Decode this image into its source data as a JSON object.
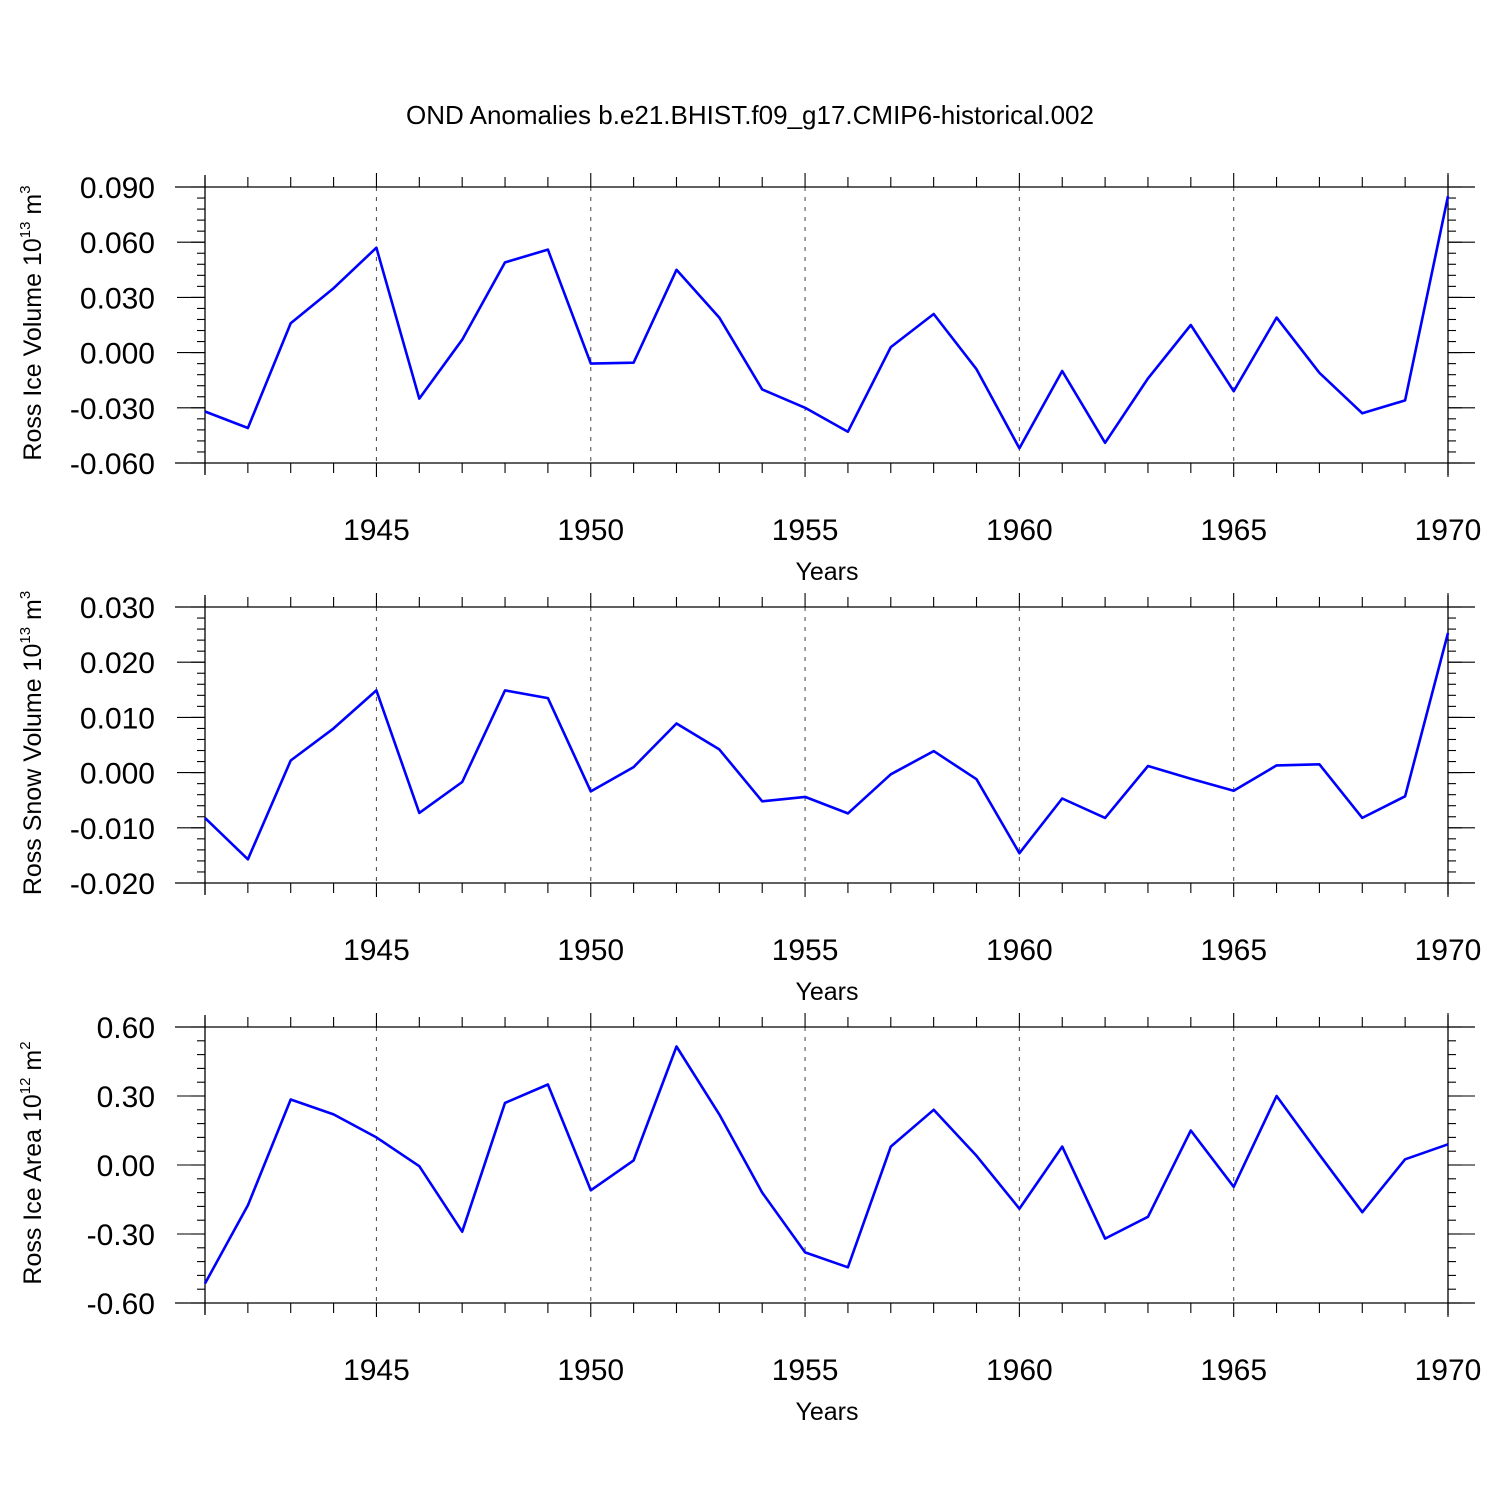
{
  "title": "OND Anomalies b.e21.BHIST.f09_g17.CMIP6-historical.002",
  "chart_data": [
    {
      "type": "line",
      "ylabel": "Ross Ice Volume 10",
      "ylabel_exp": "13",
      "ylabel_unit": " m",
      "ylabel_unit_exp": "3",
      "xlabel": "Years",
      "xlim": [
        1941,
        1970
      ],
      "ylim": [
        -0.06,
        0.09
      ],
      "yticks": [
        -0.06,
        -0.03,
        0.0,
        0.03,
        0.06,
        0.09
      ],
      "ytick_labels": [
        "-0.060",
        "-0.030",
        "0.000",
        "0.030",
        "0.060",
        "0.090"
      ],
      "xticks": [
        1945,
        1950,
        1955,
        1960,
        1965,
        1970
      ],
      "xtick_labels": [
        "1945",
        "1950",
        "1955",
        "1960",
        "1965",
        "1970"
      ],
      "grid": "vertical dashed at labeled years",
      "series": [
        {
          "color": "#0000ff",
          "x": [
            1941,
            1942,
            1943,
            1944,
            1945,
            1946,
            1947,
            1948,
            1949,
            1950,
            1951,
            1952,
            1953,
            1954,
            1955,
            1956,
            1957,
            1958,
            1959,
            1960,
            1961,
            1962,
            1963,
            1964,
            1965,
            1966,
            1967,
            1968,
            1969,
            1970
          ],
          "y": [
            -0.032,
            -0.041,
            0.016,
            0.035,
            0.057,
            -0.025,
            0.007,
            0.049,
            0.056,
            -0.006,
            -0.0055,
            0.045,
            0.019,
            -0.02,
            -0.03,
            -0.043,
            0.003,
            0.021,
            -0.009,
            -0.052,
            -0.01,
            -0.049,
            -0.014,
            0.015,
            -0.021,
            0.019,
            -0.011,
            -0.033,
            -0.026,
            0.085
          ]
        }
      ]
    },
    {
      "type": "line",
      "ylabel": "Ross Snow Volume 10",
      "ylabel_exp": "13",
      "ylabel_unit": " m",
      "ylabel_unit_exp": "3",
      "xlabel": "Years",
      "xlim": [
        1941,
        1970
      ],
      "ylim": [
        -0.02,
        0.03
      ],
      "yticks": [
        -0.02,
        -0.01,
        0.0,
        0.01,
        0.02,
        0.03
      ],
      "ytick_labels": [
        "-0.020",
        "-0.010",
        "0.000",
        "0.010",
        "0.020",
        "0.030"
      ],
      "xticks": [
        1945,
        1950,
        1955,
        1960,
        1965,
        1970
      ],
      "xtick_labels": [
        "1945",
        "1950",
        "1955",
        "1960",
        "1965",
        "1970"
      ],
      "grid": "vertical dashed at labeled years",
      "series": [
        {
          "color": "#0000ff",
          "x": [
            1941,
            1942,
            1943,
            1944,
            1945,
            1946,
            1947,
            1948,
            1949,
            1950,
            1951,
            1952,
            1953,
            1954,
            1955,
            1956,
            1957,
            1958,
            1959,
            1960,
            1961,
            1962,
            1963,
            1964,
            1965,
            1966,
            1967,
            1968,
            1969,
            1970
          ],
          "y": [
            -0.0082,
            -0.0157,
            0.0022,
            0.008,
            0.0149,
            -0.0073,
            -0.0017,
            0.0149,
            0.0135,
            -0.0034,
            0.001,
            0.0089,
            0.0042,
            -0.0052,
            -0.0044,
            -0.0074,
            -0.0003,
            0.0039,
            -0.0012,
            -0.0146,
            -0.0047,
            -0.0082,
            0.0012,
            -0.0011,
            -0.0033,
            0.0013,
            0.0015,
            -0.0082,
            -0.0043,
            0.0253
          ]
        }
      ]
    },
    {
      "type": "line",
      "ylabel": "Ross Ice Area 10",
      "ylabel_exp": "12",
      "ylabel_unit": " m",
      "ylabel_unit_exp": "2",
      "xlabel": "Years",
      "xlim": [
        1941,
        1970
      ],
      "ylim": [
        -0.6,
        0.6
      ],
      "yticks": [
        -0.6,
        -0.3,
        0.0,
        0.3,
        0.6
      ],
      "ytick_labels": [
        "-0.60",
        "-0.30",
        "0.00",
        "0.30",
        "0.60"
      ],
      "xticks": [
        1945,
        1950,
        1955,
        1960,
        1965,
        1970
      ],
      "xtick_labels": [
        "1945",
        "1950",
        "1955",
        "1960",
        "1965",
        "1970"
      ],
      "grid": "vertical dashed at labeled years",
      "series": [
        {
          "color": "#0000ff",
          "x": [
            1941,
            1942,
            1943,
            1944,
            1945,
            1946,
            1947,
            1948,
            1949,
            1950,
            1951,
            1952,
            1953,
            1954,
            1955,
            1956,
            1957,
            1958,
            1959,
            1960,
            1961,
            1962,
            1963,
            1964,
            1965,
            1966,
            1967,
            1968,
            1969,
            1970
          ],
          "y": [
            -0.515,
            -0.175,
            0.285,
            0.22,
            0.12,
            -0.005,
            -0.29,
            0.27,
            0.35,
            -0.11,
            0.02,
            0.515,
            0.22,
            -0.12,
            -0.38,
            -0.445,
            0.08,
            0.24,
            0.04,
            -0.19,
            0.08,
            -0.32,
            -0.225,
            0.15,
            -0.095,
            0.3,
            0.045,
            -0.205,
            0.025,
            0.09
          ]
        }
      ]
    }
  ]
}
